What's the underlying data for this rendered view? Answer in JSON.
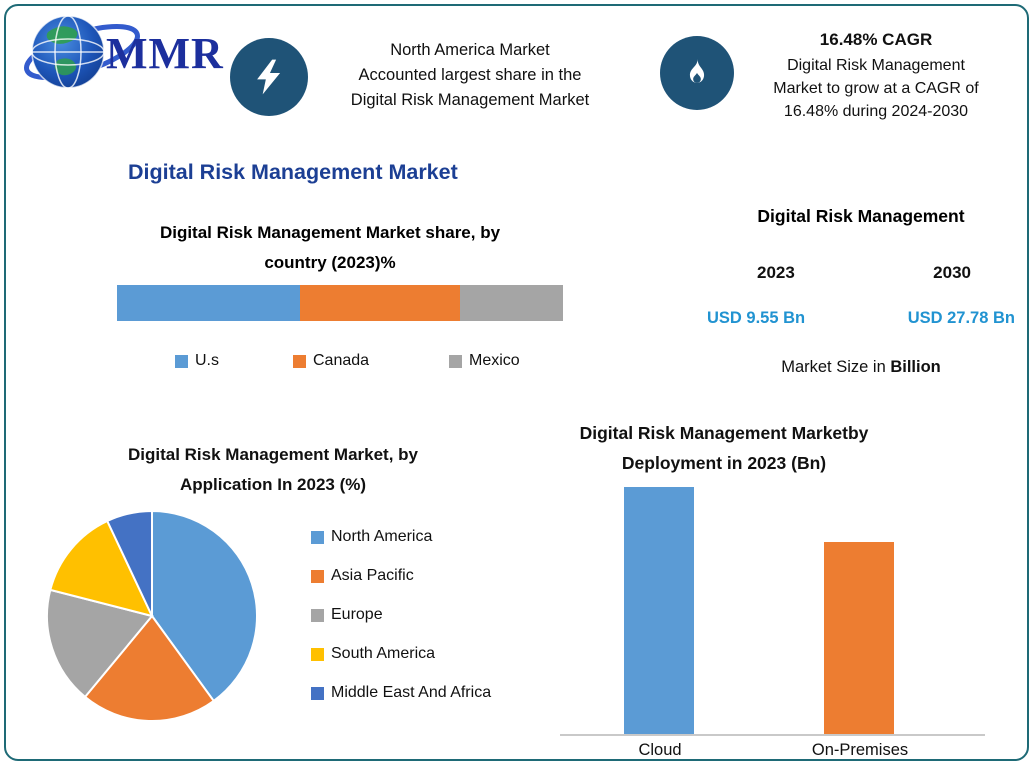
{
  "frame": {
    "border_color": "#1e6a76",
    "background": "#ffffff"
  },
  "logo": {
    "text": "MMR",
    "color": "#1c2f9d"
  },
  "highlights": {
    "left": {
      "icon": "lightning-icon",
      "circle_color": "#1f5377",
      "lines": [
        "North America Market",
        "Accounted largest share in the",
        "Digital Risk Management Market"
      ]
    },
    "right": {
      "icon": "flame-icon",
      "circle_color": "#1f5377",
      "title": "16.48% CAGR",
      "lines": [
        "Digital Risk Management",
        "Market to grow at a CAGR of",
        "16.48% during 2024-2030"
      ]
    }
  },
  "main_title": "Digital Risk Management Market",
  "market_size_panel": {
    "title": "Digital Risk Management",
    "years": [
      {
        "year": "2023",
        "value": "USD 9.55 Bn"
      },
      {
        "year": "2030",
        "value": "USD 27.78 Bn"
      }
    ],
    "value_color": "#2193d1",
    "note_prefix": "Market Size in ",
    "note_bold": "Billion"
  },
  "chart_data": [
    {
      "id": "country_share",
      "type": "bar",
      "variant": "stacked-horizontal",
      "title": "Digital Risk Management Market share, by country (2023)%",
      "categories": [
        "U.s",
        "Canada",
        "Mexico"
      ],
      "values": [
        41,
        36,
        23
      ],
      "colors": [
        "#5b9bd5",
        "#ed7d31",
        "#a5a5a5"
      ],
      "unit": "percent",
      "legend_position": "bottom"
    },
    {
      "id": "application_pie",
      "type": "pie",
      "title": "Digital Risk Management Market, by Application In 2023 (%)",
      "categories": [
        "North America",
        "Asia Pacific",
        "Europe",
        "South America",
        "Middle East And Africa"
      ],
      "values": [
        40,
        21,
        18,
        14,
        7
      ],
      "colors": [
        "#5b9bd5",
        "#ed7d31",
        "#a5a5a5",
        "#ffc000",
        "#4472c4"
      ],
      "start_angle_deg": -90,
      "unit": "percent",
      "legend_position": "right"
    },
    {
      "id": "deployment_bar",
      "type": "bar",
      "title": "Digital Risk Management Marketby Deployment in 2023 (Bn)",
      "categories": [
        "Cloud",
        "On-Premises"
      ],
      "values": [
        5.4,
        4.2
      ],
      "colors": [
        "#5b9bd5",
        "#ed7d31"
      ],
      "ylim": [
        0,
        5.5
      ],
      "unit": "Bn",
      "grid": false
    }
  ]
}
